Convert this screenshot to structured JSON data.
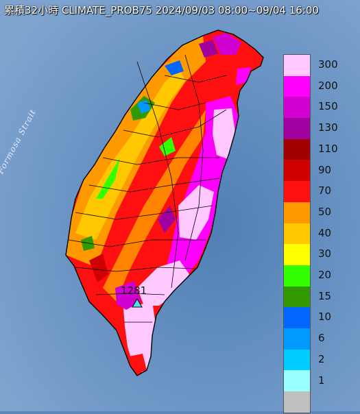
{
  "title": "累積32小時 CLIMATE_PROB75 2024/09/03 08:00~09/04 16:00",
  "strait_label": "Formosa Strait",
  "station": {
    "label": "1281",
    "marker": "triangle-icon"
  },
  "legend": {
    "items": [
      {
        "label": "300",
        "color": "#ffc8ff"
      },
      {
        "label": "200",
        "color": "#ff00ff"
      },
      {
        "label": "150",
        "color": "#d000d0"
      },
      {
        "label": "130",
        "color": "#a000a0"
      },
      {
        "label": "110",
        "color": "#a00000"
      },
      {
        "label": "90",
        "color": "#d00000"
      },
      {
        "label": "70",
        "color": "#ff1010"
      },
      {
        "label": "50",
        "color": "#ff9900"
      },
      {
        "label": "40",
        "color": "#ffc800"
      },
      {
        "label": "30",
        "color": "#ffff00"
      },
      {
        "label": "20",
        "color": "#33ff00"
      },
      {
        "label": "15",
        "color": "#339900"
      },
      {
        "label": "10",
        "color": "#0066ff"
      },
      {
        "label": "6",
        "color": "#0099ff"
      },
      {
        "label": "2",
        "color": "#00ccff"
      },
      {
        "label": "1",
        "color": "#99ffff"
      },
      {
        "label": "",
        "color": "#c0c0c0"
      }
    ]
  },
  "colors": {
    "sea": "#5b87b8",
    "land_no_rain": "#c0c0c0",
    "boundary": "#000000"
  }
}
